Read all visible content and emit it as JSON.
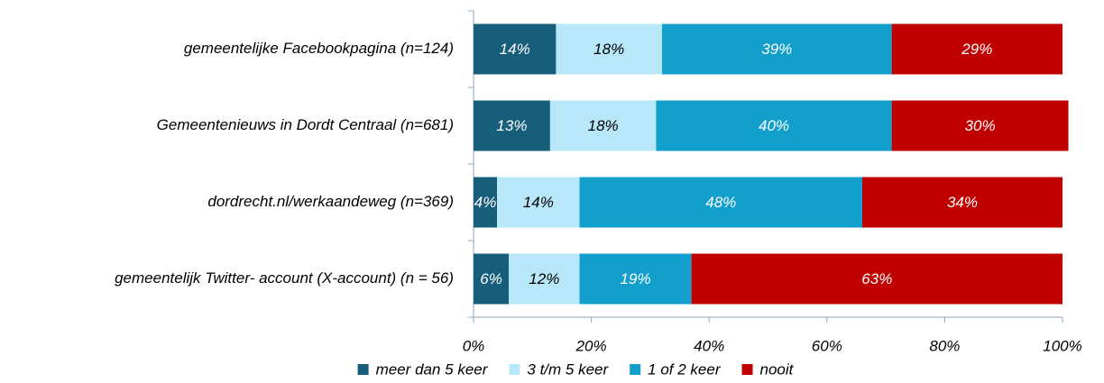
{
  "chart_data": {
    "type": "stacked-bar-horizontal",
    "categories": [
      "gemeentelijke Facebookpagina (n=124)",
      "Gemeentenieuws in Dordt Centraal (n=681)",
      "dordrecht.nl/werkaandeweg (n=369)",
      "gemeentelijk Twitter- account (X-account) (n = 56)"
    ],
    "series": [
      {
        "name": "meer dan 5 keer",
        "color": "#175e7a",
        "values": [
          14,
          13,
          4,
          6
        ],
        "value_labels": [
          "14%",
          "13%",
          "4%",
          "6%"
        ]
      },
      {
        "name": "3 t/m 5 keer",
        "color": "#b8e7f9",
        "values": [
          18,
          18,
          14,
          12
        ],
        "value_labels": [
          "18%",
          "18%",
          "14%",
          "12%"
        ]
      },
      {
        "name": "1 of 2 keer",
        "color": "#139fcc",
        "values": [
          39,
          40,
          48,
          19
        ],
        "value_labels": [
          "39%",
          "40%",
          "48%",
          "19%"
        ]
      },
      {
        "name": "nooit",
        "color": "#c00000",
        "values": [
          29,
          30,
          34,
          63
        ],
        "value_labels": [
          "29%",
          "30%",
          "34%",
          "63%"
        ]
      }
    ],
    "xlim": [
      0,
      100
    ],
    "xticks": [
      {
        "value": 0,
        "label": "0%"
      },
      {
        "value": 20,
        "label": "20%"
      },
      {
        "value": 40,
        "label": "40%"
      },
      {
        "value": 60,
        "label": "60%"
      },
      {
        "value": 80,
        "label": "80%"
      },
      {
        "value": 100,
        "label": "100%"
      }
    ],
    "legend": "bottom"
  }
}
